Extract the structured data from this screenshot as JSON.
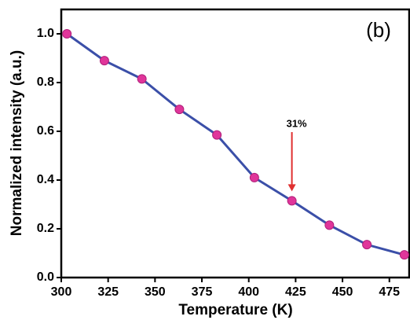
{
  "chart_data": {
    "type": "line",
    "panel_label": "(b)",
    "xlabel": "Temperature (K)",
    "ylabel": "Normalized intensity (a.u.)",
    "x": [
      303,
      323,
      343,
      363,
      383,
      403,
      423,
      443,
      463,
      483
    ],
    "series": [
      {
        "name": "Normalized intensity",
        "color": "#3b4fa8",
        "marker_color": "#e0359a",
        "values": [
          1.0,
          0.89,
          0.815,
          0.69,
          0.585,
          0.41,
          0.315,
          0.215,
          0.135,
          0.093
        ]
      }
    ],
    "xlim": [
      300,
      486
    ],
    "ylim": [
      0,
      1.1
    ],
    "xticks": [
      300,
      325,
      350,
      375,
      400,
      425,
      450,
      475
    ],
    "yticks": [
      {
        "value": 0,
        "label": "0.0"
      },
      {
        "value": 0.2,
        "label": "0.2"
      },
      {
        "value": 0.4,
        "label": "0.4"
      },
      {
        "value": 0.6,
        "label": "0.6"
      },
      {
        "value": 0.8,
        "label": "0.8"
      },
      {
        "value": 1,
        "label": "1.0"
      }
    ],
    "annotation": {
      "text": "31%",
      "x": 423,
      "color": "#e03030"
    }
  }
}
